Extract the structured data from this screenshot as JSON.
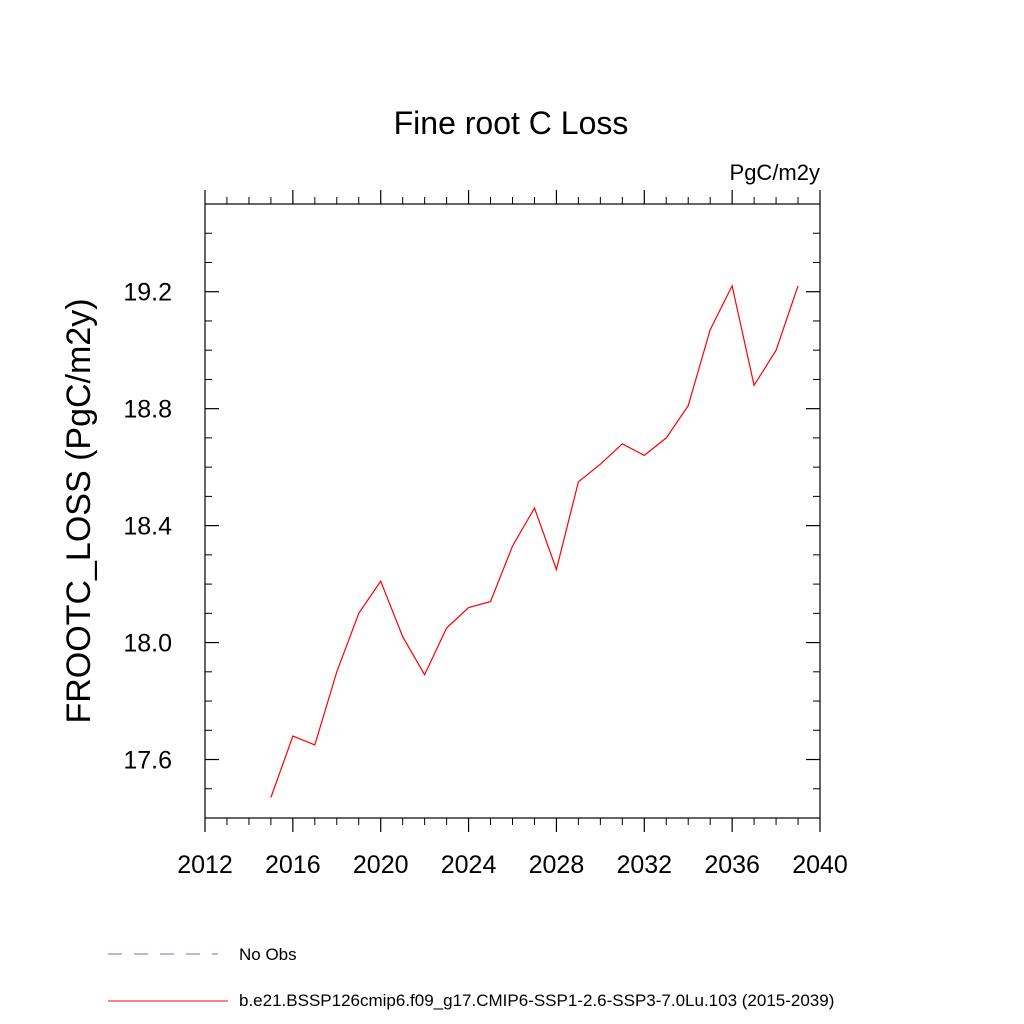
{
  "chart_data": {
    "type": "line",
    "title": "Fine root C Loss",
    "units": "PgC/m2y",
    "xlabel": "",
    "ylabel": "FROOTC_LOSS  (PgC/m2y)",
    "xlim": [
      2012,
      2040
    ],
    "ylim": [
      17.4,
      19.5
    ],
    "xticks": [
      2012,
      2016,
      2020,
      2024,
      2028,
      2032,
      2036,
      2040
    ],
    "yticks": [
      17.6,
      18.0,
      18.4,
      18.8,
      19.2
    ],
    "xtick_labels": [
      "2012",
      "2016",
      "2020",
      "2024",
      "2028",
      "2032",
      "2036",
      "2040"
    ],
    "ytick_labels": [
      "17.6",
      "18.0",
      "18.4",
      "18.8",
      "19.2"
    ],
    "grid": false,
    "legend_position": "bottom",
    "legend": [
      {
        "label": "No Obs",
        "color": "#7b68c8",
        "style": "dashed"
      },
      {
        "label": "b.e21.BSSP126cmip6.f09_g17.CMIP6-SSP1-2.6-SSP3-7.0Lu.103 (2015-2039)",
        "color": "#ff0000",
        "style": "solid"
      }
    ],
    "series": [
      {
        "name": "b.e21.BSSP126cmip6.f09_g17.CMIP6-SSP1-2.6-SSP3-7.0Lu.103 (2015-2039)",
        "color": "#ff0000",
        "x": [
          2015,
          2016,
          2017,
          2018,
          2019,
          2020,
          2021,
          2022,
          2023,
          2024,
          2025,
          2026,
          2027,
          2028,
          2029,
          2030,
          2031,
          2032,
          2033,
          2034,
          2035,
          2036,
          2037,
          2038,
          2039
        ],
        "y": [
          17.47,
          17.68,
          17.65,
          17.9,
          18.1,
          18.21,
          18.02,
          17.89,
          18.05,
          18.12,
          18.14,
          18.33,
          18.46,
          18.25,
          18.55,
          18.61,
          18.68,
          18.64,
          18.7,
          18.81,
          19.07,
          19.22,
          18.88,
          19.0,
          19.22
        ]
      }
    ]
  }
}
